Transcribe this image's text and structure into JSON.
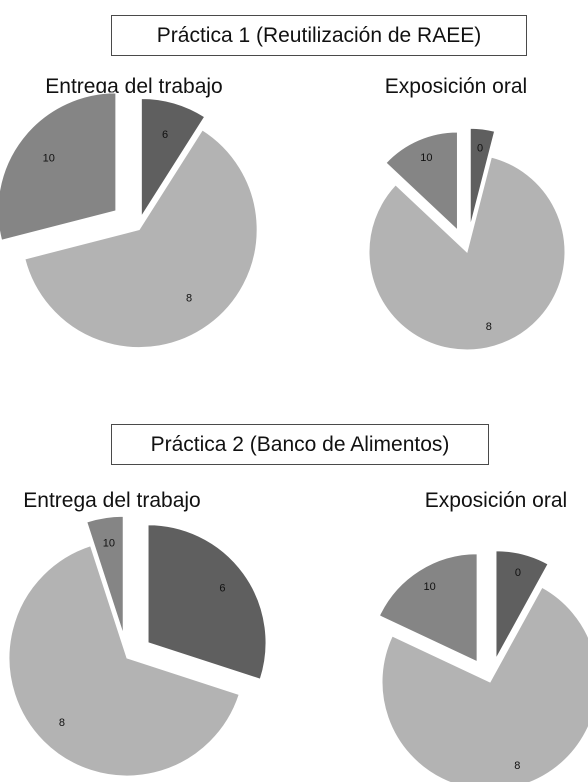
{
  "chart_data": [
    {
      "type": "pie",
      "section": "Práctica 1 (Reutilización de RAEE)",
      "title": "Entrega del trabajo",
      "slices": [
        {
          "label": "6",
          "value": 0.09,
          "color": "#5f5f5f"
        },
        {
          "label": "8",
          "value": 0.62,
          "color": "#b3b3b3"
        },
        {
          "label": "10",
          "value": 0.29,
          "color": "#858585"
        }
      ]
    },
    {
      "type": "pie",
      "section": "Práctica 1 (Reutilización de RAEE)",
      "title": "Exposición oral",
      "slices": [
        {
          "label": "0",
          "value": 0.04,
          "color": "#5f5f5f"
        },
        {
          "label": "8",
          "value": 0.83,
          "color": "#b3b3b3"
        },
        {
          "label": "10",
          "value": 0.13,
          "color": "#858585"
        }
      ]
    },
    {
      "type": "pie",
      "section": "Práctica 2 (Banco de Alimentos)",
      "title": "Entrega del trabajo",
      "slices": [
        {
          "label": "6",
          "value": 0.3,
          "color": "#5f5f5f"
        },
        {
          "label": "8",
          "value": 0.65,
          "color": "#b3b3b3"
        },
        {
          "label": "10",
          "value": 0.05,
          "color": "#858585"
        }
      ]
    },
    {
      "type": "pie",
      "section": "Práctica 2 (Banco de Alimentos)",
      "title": "Exposición oral",
      "slices": [
        {
          "label": "0",
          "value": 0.08,
          "color": "#5f5f5f"
        },
        {
          "label": "8",
          "value": 0.74,
          "color": "#b3b3b3"
        },
        {
          "label": "10",
          "value": 0.18,
          "color": "#858585"
        }
      ]
    }
  ]
}
